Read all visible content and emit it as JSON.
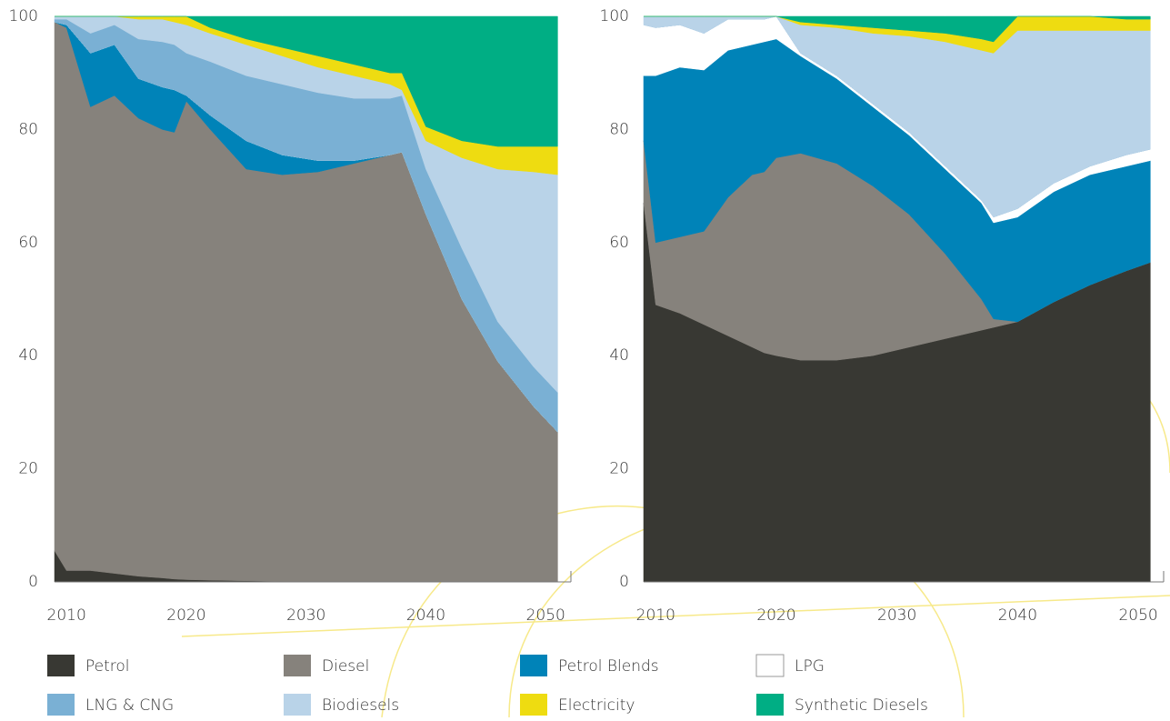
{
  "chart_data": [
    {
      "type": "area",
      "stacked": true,
      "x": [
        2009,
        2010,
        2012,
        2014,
        2016,
        2018,
        2019,
        2020,
        2022,
        2025,
        2028,
        2031,
        2034,
        2037,
        2038,
        2040,
        2043,
        2046,
        2049,
        2051
      ],
      "xlim": [
        2009,
        2051.5
      ],
      "xticks": [
        2010,
        2020,
        2030,
        2040,
        2050
      ],
      "ylim": [
        0,
        100
      ],
      "yticks": [
        0,
        20,
        40,
        60,
        80,
        100
      ],
      "series": [
        {
          "name": "Petrol",
          "color": "#383833",
          "values": [
            5.5,
            2,
            2,
            1.5,
            1,
            0.7,
            0.5,
            0.4,
            0.3,
            0.2,
            0.1,
            0,
            0,
            0,
            0,
            0,
            0,
            0,
            0,
            0
          ]
        },
        {
          "name": "Diesel",
          "color": "#86827c",
          "values": [
            93.5,
            96,
            82,
            84.5,
            81,
            79.3,
            79,
            84.6,
            79.7,
            72.8,
            71.9,
            72.5,
            74,
            75.5,
            76,
            65,
            50,
            39,
            31,
            26.5
          ]
        },
        {
          "name": "Petrol Blends",
          "color": "#0083b8",
          "values": [
            0,
            0.5,
            9.5,
            9,
            7,
            7.5,
            7.5,
            1,
            2.5,
            5,
            3.5,
            2,
            0.5,
            0,
            0,
            0,
            0,
            0,
            0,
            0
          ]
        },
        {
          "name": "LPG",
          "color": "#ffffff",
          "values": [
            0,
            0,
            0,
            0,
            0,
            0,
            0,
            0,
            0,
            0,
            0,
            0,
            0,
            0,
            0,
            0,
            0,
            0,
            0,
            0
          ]
        },
        {
          "name": "LNG & CNG",
          "color": "#7ab0d4",
          "values": [
            0.5,
            1,
            3.5,
            3.5,
            7,
            8,
            8,
            7.5,
            9.5,
            11.5,
            12.5,
            12,
            11,
            10,
            10,
            8,
            9,
            7,
            7,
            7
          ]
        },
        {
          "name": "Biodiesels",
          "color": "#b9d3e8",
          "values": [
            0.5,
            0.5,
            3,
            1.5,
            3.5,
            4,
            4,
            5,
            5,
            5.5,
            5,
            4.5,
            4,
            2.5,
            1,
            5,
            16,
            27,
            34.5,
            38.5
          ]
        },
        {
          "name": "Electricity",
          "color": "#eedc11",
          "values": [
            0,
            0,
            0,
            0,
            0.5,
            0.5,
            1,
            1.5,
            1,
            1,
            1.5,
            2,
            2,
            2,
            3,
            2.5,
            3,
            4,
            4.5,
            5
          ]
        },
        {
          "name": "Synthetic Diesels",
          "color": "#00ae84",
          "values": [
            0,
            0,
            0,
            0,
            0,
            0,
            0,
            0,
            2,
            4,
            5.5,
            7,
            8.5,
            10,
            10,
            19.5,
            22,
            23,
            23,
            23
          ]
        }
      ]
    },
    {
      "type": "area",
      "stacked": true,
      "x": [
        2009,
        2010,
        2012,
        2014,
        2016,
        2018,
        2019,
        2020,
        2022,
        2025,
        2028,
        2031,
        2034,
        2037,
        2038,
        2040,
        2043,
        2046,
        2049,
        2051
      ],
      "xlim": [
        2009,
        2051.5
      ],
      "xticks": [
        2010,
        2020,
        2030,
        2040,
        2050
      ],
      "ylim": [
        0,
        100
      ],
      "yticks": [
        0,
        20,
        40,
        60,
        80,
        100
      ],
      "series": [
        {
          "name": "Petrol",
          "color": "#383833",
          "values": [
            67,
            49,
            47.5,
            45.5,
            43.5,
            41.5,
            40.5,
            40,
            39.2,
            39.2,
            40,
            41.5,
            43,
            44.5,
            45,
            46,
            49.5,
            52.5,
            55,
            56.5
          ]
        },
        {
          "name": "Diesel",
          "color": "#86827c",
          "values": [
            11,
            11,
            13.5,
            16.5,
            24.5,
            30.5,
            32,
            35,
            36.6,
            34.8,
            30,
            23.5,
            15,
            5.5,
            1.5,
            0,
            0,
            0,
            0,
            0
          ]
        },
        {
          "name": "Petrol Blends",
          "color": "#0083b8",
          "values": [
            11.5,
            29.5,
            30,
            28.5,
            26,
            23,
            23,
            21,
            17.2,
            15,
            14,
            14,
            15,
            17,
            17,
            18.5,
            19.5,
            19.5,
            18.5,
            18
          ]
        },
        {
          "name": "LPG",
          "color": "#ffffff",
          "values": [
            9,
            8.5,
            7.5,
            6.5,
            5.5,
            4.5,
            4,
            4,
            0.5,
            0.5,
            0.5,
            0.5,
            0.5,
            0.5,
            1,
            1.5,
            1.5,
            1.5,
            2,
            2
          ]
        },
        {
          "name": "LNG & CNG",
          "color": "#7ab0d4",
          "values": [
            0,
            0,
            0,
            0,
            0,
            0,
            0,
            0,
            0,
            0,
            0,
            0,
            0,
            0,
            0,
            0,
            0,
            0,
            0,
            0
          ]
        },
        {
          "name": "Biodiesels",
          "color": "#b9d3e8",
          "values": [
            1.5,
            2,
            1.5,
            3,
            0.5,
            0.5,
            0.5,
            0,
            5,
            8.5,
            12.5,
            17,
            22,
            26.5,
            29,
            31.5,
            27,
            24,
            22,
            21
          ]
        },
        {
          "name": "Electricity",
          "color": "#eedc11",
          "values": [
            0,
            0,
            0,
            0,
            0,
            0,
            0,
            0,
            0.5,
            0.5,
            1,
            1,
            1.5,
            2,
            2,
            2.5,
            2.5,
            2.5,
            2,
            2
          ]
        },
        {
          "name": "Synthetic Diesels",
          "color": "#00ae84",
          "values": [
            0,
            0,
            0,
            0,
            0,
            0,
            0,
            0,
            1,
            1.5,
            2,
            2.5,
            3,
            4,
            4.5,
            0,
            0,
            0,
            0.5,
            0.5
          ]
        }
      ]
    }
  ]
}
